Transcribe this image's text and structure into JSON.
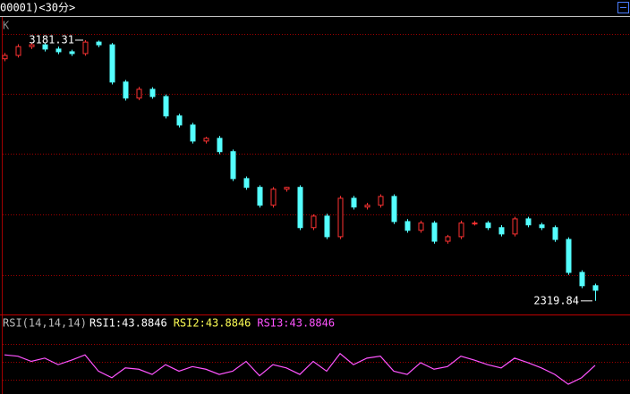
{
  "header": {
    "title": "00001)<30分>",
    "panel_label": "K"
  },
  "chart_data": [
    {
      "type": "candlestick",
      "open": [
        3120,
        3131,
        3160,
        3166,
        3152,
        3143,
        3137,
        3175,
        3166,
        3043,
        2990,
        3019,
        2995,
        2931,
        2901,
        2848,
        2857,
        2813,
        2724,
        2695,
        2636,
        2689,
        2695,
        2562,
        2600,
        2532,
        2659,
        2630,
        2636,
        2665,
        2582,
        2553,
        2577,
        2517,
        2532,
        2577,
        2577,
        2562,
        2541,
        2591,
        2571,
        2562,
        2523,
        2414,
        2370
      ],
      "high": [
        3139,
        3168,
        3174,
        3172,
        3160,
        3150,
        3181.31,
        3180,
        3172,
        3050,
        3027,
        3026,
        3002,
        2938,
        2908,
        2862,
        2865,
        2820,
        2731,
        2702,
        2696,
        2697,
        2702,
        2606,
        2608,
        2667,
        2667,
        2644,
        2672,
        2672,
        2590,
        2585,
        2584,
        2538,
        2585,
        2584,
        2584,
        2570,
        2598,
        2598,
        2578,
        2569,
        2530,
        2421,
        2377
      ],
      "low": [
        3112,
        3124,
        3152,
        3144,
        3135,
        3129,
        3130,
        3158,
        3035,
        2982,
        2983,
        2988,
        2923,
        2893,
        2840,
        2840,
        2805,
        2716,
        2687,
        2628,
        2628,
        2681,
        2554,
        2554,
        2524,
        2524,
        2622,
        2622,
        2628,
        2574,
        2545,
        2545,
        2509,
        2509,
        2524,
        2569,
        2554,
        2533,
        2533,
        2563,
        2554,
        2515,
        2406,
        2362,
        2319.84
      ],
      "close": [
        3131,
        3160,
        3166,
        3152,
        3143,
        3137,
        3175,
        3166,
        3043,
        2990,
        3019,
        2995,
        2931,
        2901,
        2848,
        2857,
        2813,
        2724,
        2695,
        2636,
        2689,
        2695,
        2562,
        2600,
        2532,
        2659,
        2630,
        2636,
        2665,
        2582,
        2553,
        2577,
        2517,
        2532,
        2577,
        2577,
        2562,
        2541,
        2591,
        2571,
        2562,
        2523,
        2414,
        2370,
        2355
      ],
      "up_color": "#ff3232",
      "down_color": "#54ffff",
      "ylim": [
        2275,
        3255
      ],
      "max_index": 6,
      "min_index": 44
    },
    {
      "type": "line",
      "title": "RSI(14,14,14)",
      "indicator_labels": [
        {
          "text": "RSI1:43.8846",
          "color": "#ffffff"
        },
        {
          "text": "RSI2:43.8846",
          "color": "#ffff54"
        },
        {
          "text": "RSI3:43.8846",
          "color": "#ff54ff"
        }
      ],
      "values": [
        60,
        58,
        50,
        55,
        45,
        52,
        60,
        35,
        25,
        40,
        38,
        30,
        45,
        35,
        42,
        38,
        30,
        35,
        50,
        28,
        45,
        40,
        30,
        50,
        35,
        62,
        45,
        55,
        58,
        35,
        30,
        48,
        38,
        42,
        58,
        52,
        45,
        40,
        55,
        48,
        40,
        30,
        15,
        25,
        43.8846
      ],
      "color": "#ff54ff",
      "ylim": [
        0,
        100
      ]
    }
  ]
}
